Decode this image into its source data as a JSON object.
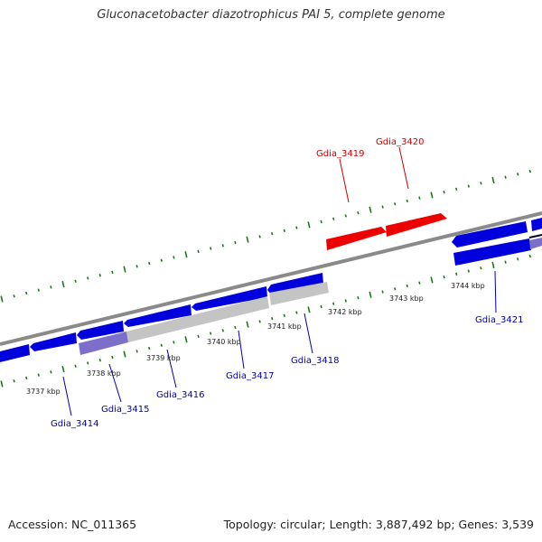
{
  "title": "Gluconacetobacter diazotrophicus PAI 5, complete genome",
  "accession_label": "Accession: NC_011365",
  "summary_label": "Topology: circular; Length: 3,887,492 bp; Genes: 3,539",
  "colors": {
    "backbone": "#8a8a8a",
    "tick": "#1a7a1a",
    "forward_gene": "#ee0000",
    "reverse_gene": "#0000dd",
    "light_gene": "#c4c4c4",
    "purple_gene": "#7b6fc9",
    "forward_label": "#cc0000",
    "reverse_label": "#0000aa"
  },
  "scale_labels": [
    "3737 kbp",
    "3738 kbp",
    "3739 kbp",
    "3740 kbp",
    "3741 kbp",
    "3742 kbp",
    "3743 kbp",
    "3744 kbp"
  ],
  "gene_labels": [
    {
      "text": "Gdia_3419",
      "strand": "forward"
    },
    {
      "text": "Gdia_3420",
      "strand": "forward"
    },
    {
      "text": "Gdia_3414",
      "strand": "reverse"
    },
    {
      "text": "Gdia_3415",
      "strand": "reverse"
    },
    {
      "text": "Gdia_3416",
      "strand": "reverse"
    },
    {
      "text": "Gdia_3417",
      "strand": "reverse"
    },
    {
      "text": "Gdia_3418",
      "strand": "reverse"
    },
    {
      "text": "Gdia_3421",
      "strand": "reverse"
    }
  ]
}
